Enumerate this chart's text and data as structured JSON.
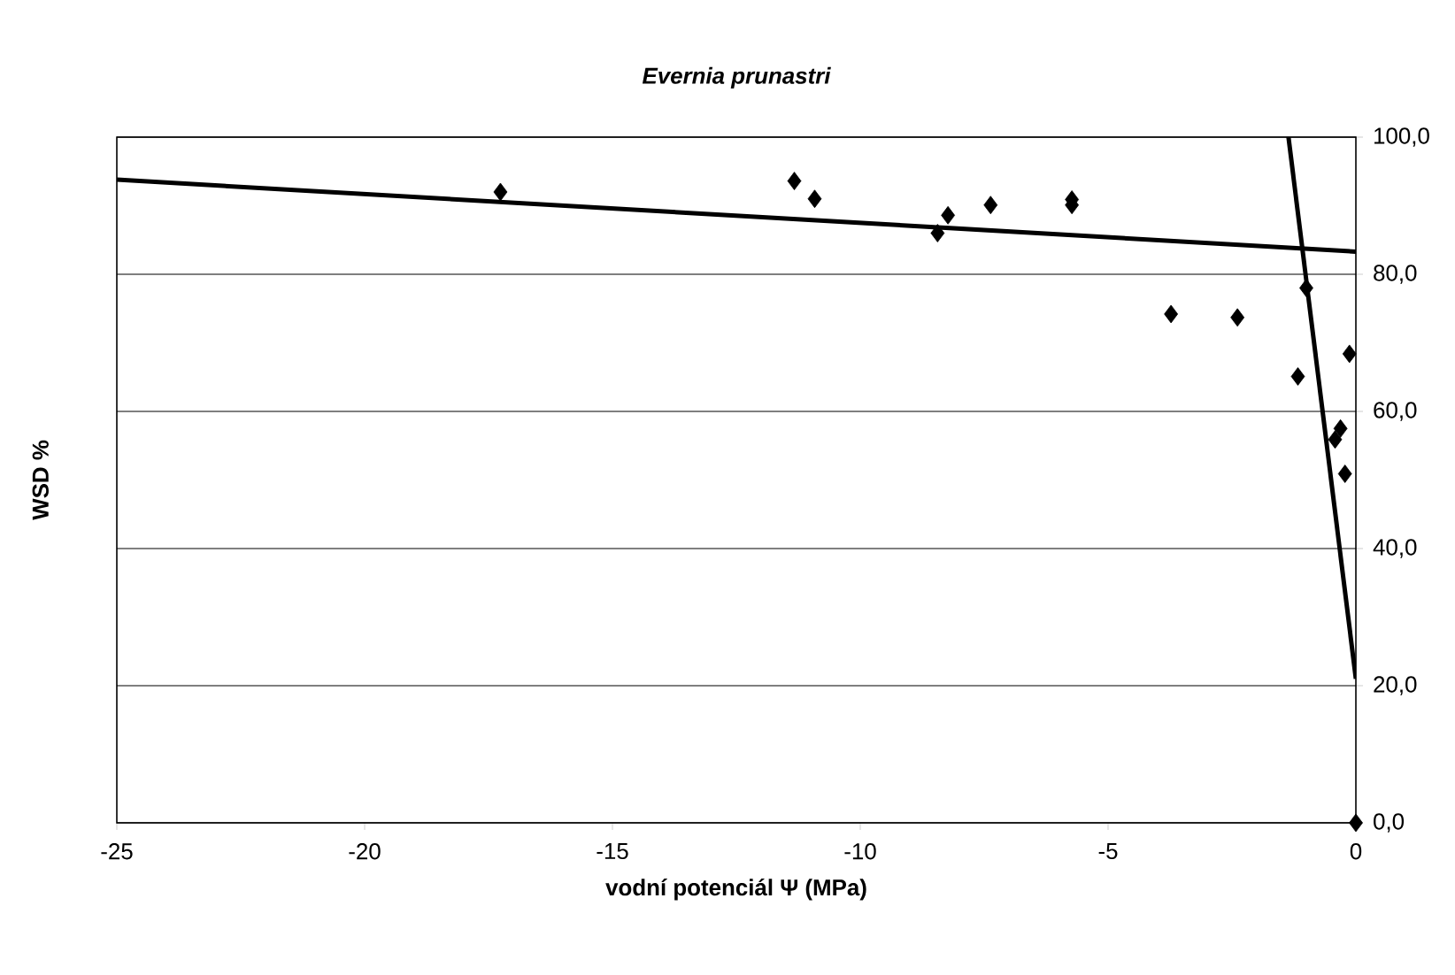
{
  "chart_data": {
    "type": "scatter",
    "title": "Evernia prunastri",
    "xlabel": "vodní potenciál Ψ (MPa)",
    "ylabel": "WSD %",
    "xlim": [
      -25,
      0
    ],
    "ylim": [
      0,
      100
    ],
    "xticks": [
      -25,
      -20,
      -15,
      -10,
      -5,
      0
    ],
    "yticks": [
      {
        "value": 0,
        "label": "0,0"
      },
      {
        "value": 20,
        "label": "20,0"
      },
      {
        "value": 40,
        "label": "40,0"
      },
      {
        "value": 60,
        "label": "60,0"
      },
      {
        "value": 80,
        "label": "80,0"
      },
      {
        "value": 100,
        "label": "100,0"
      }
    ],
    "grid": "y",
    "series": [
      {
        "marker": "diamond",
        "color": "#000000",
        "x": [
          -17.26,
          -11.33,
          -10.92,
          -8.23,
          -8.44,
          -7.37,
          -5.73,
          -5.73,
          -3.73,
          -2.39,
          -1.0,
          -1.17,
          -0.13,
          -0.31,
          -0.42,
          -0.22,
          0
        ],
        "values": [
          92.0,
          93.6,
          91.0,
          88.6,
          86.0,
          90.1,
          90.9,
          90.1,
          74.2,
          73.7,
          78.0,
          65.1,
          68.4,
          57.5,
          55.9,
          50.9,
          0
        ]
      },
      {
        "type": "line",
        "marker": "none",
        "color": "#000000",
        "x": [
          -25,
          0
        ],
        "values": [
          93.8,
          83.3
        ]
      },
      {
        "type": "line",
        "marker": "none",
        "color": "#000000",
        "x": [
          -1.36,
          0
        ],
        "values": [
          100,
          21
        ]
      }
    ]
  }
}
